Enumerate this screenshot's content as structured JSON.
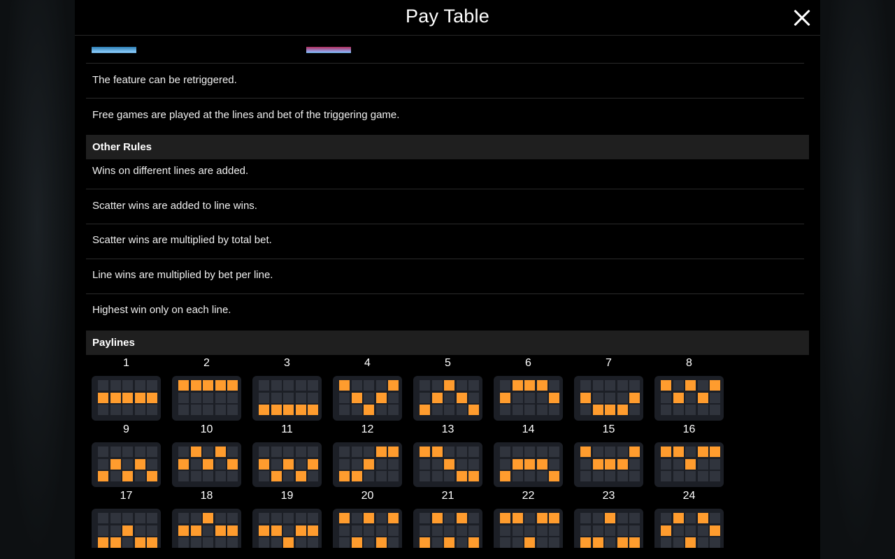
{
  "header": {
    "title": "Pay Table"
  },
  "feature_rows": [
    "The feature can be retriggered.",
    "Free games are played at the lines and bet of the triggering game."
  ],
  "other_rules": {
    "heading": "Other Rules",
    "items": [
      "Wins on different lines are added.",
      "Scatter wins are added to line wins.",
      "Scatter wins are multiplied by total bet.",
      "Line wins are multiplied by bet per line.",
      "Highest win only on each line."
    ]
  },
  "paylines": {
    "heading": "Paylines",
    "colors": {
      "active": "#ff9c2e",
      "inactive": "#30343d",
      "box": "#1c1f26"
    },
    "lines": [
      {
        "label": "1",
        "rows": [
          1,
          1,
          1,
          1,
          1
        ]
      },
      {
        "label": "2",
        "rows": [
          0,
          0,
          0,
          0,
          0
        ]
      },
      {
        "label": "3",
        "rows": [
          2,
          2,
          2,
          2,
          2
        ]
      },
      {
        "label": "4",
        "rows": [
          0,
          1,
          2,
          1,
          0
        ]
      },
      {
        "label": "5",
        "rows": [
          2,
          1,
          0,
          1,
          2
        ]
      },
      {
        "label": "6",
        "rows": [
          1,
          0,
          0,
          0,
          1
        ]
      },
      {
        "label": "7",
        "rows": [
          1,
          2,
          2,
          2,
          1
        ]
      },
      {
        "label": "8",
        "rows": [
          0,
          1,
          0,
          1,
          0
        ]
      },
      {
        "label": "9",
        "rows": [
          2,
          1,
          2,
          1,
          2
        ]
      },
      {
        "label": "10",
        "rows": [
          1,
          0,
          1,
          0,
          1
        ]
      },
      {
        "label": "11",
        "rows": [
          1,
          2,
          1,
          2,
          1
        ]
      },
      {
        "label": "12",
        "rows": [
          2,
          2,
          1,
          0,
          0
        ]
      },
      {
        "label": "13",
        "rows": [
          0,
          0,
          1,
          2,
          2
        ]
      },
      {
        "label": "14",
        "rows": [
          2,
          1,
          1,
          1,
          2
        ]
      },
      {
        "label": "15",
        "rows": [
          0,
          1,
          1,
          1,
          0
        ]
      },
      {
        "label": "16",
        "rows": [
          0,
          0,
          1,
          0,
          0
        ]
      },
      {
        "label": "17",
        "rows": [
          2,
          2,
          1,
          2,
          2
        ]
      },
      {
        "label": "18",
        "rows": [
          1,
          1,
          0,
          1,
          1
        ]
      },
      {
        "label": "19",
        "rows": [
          1,
          1,
          2,
          1,
          1
        ]
      },
      {
        "label": "20",
        "rows": [
          0,
          2,
          0,
          2,
          0
        ]
      },
      {
        "label": "21",
        "rows": [
          2,
          0,
          2,
          0,
          2
        ]
      },
      {
        "label": "22",
        "rows": [
          0,
          0,
          2,
          0,
          0
        ]
      },
      {
        "label": "23",
        "rows": [
          2,
          2,
          0,
          2,
          2
        ]
      },
      {
        "label": "24",
        "rows": [
          1,
          0,
          2,
          0,
          1
        ]
      }
    ]
  }
}
